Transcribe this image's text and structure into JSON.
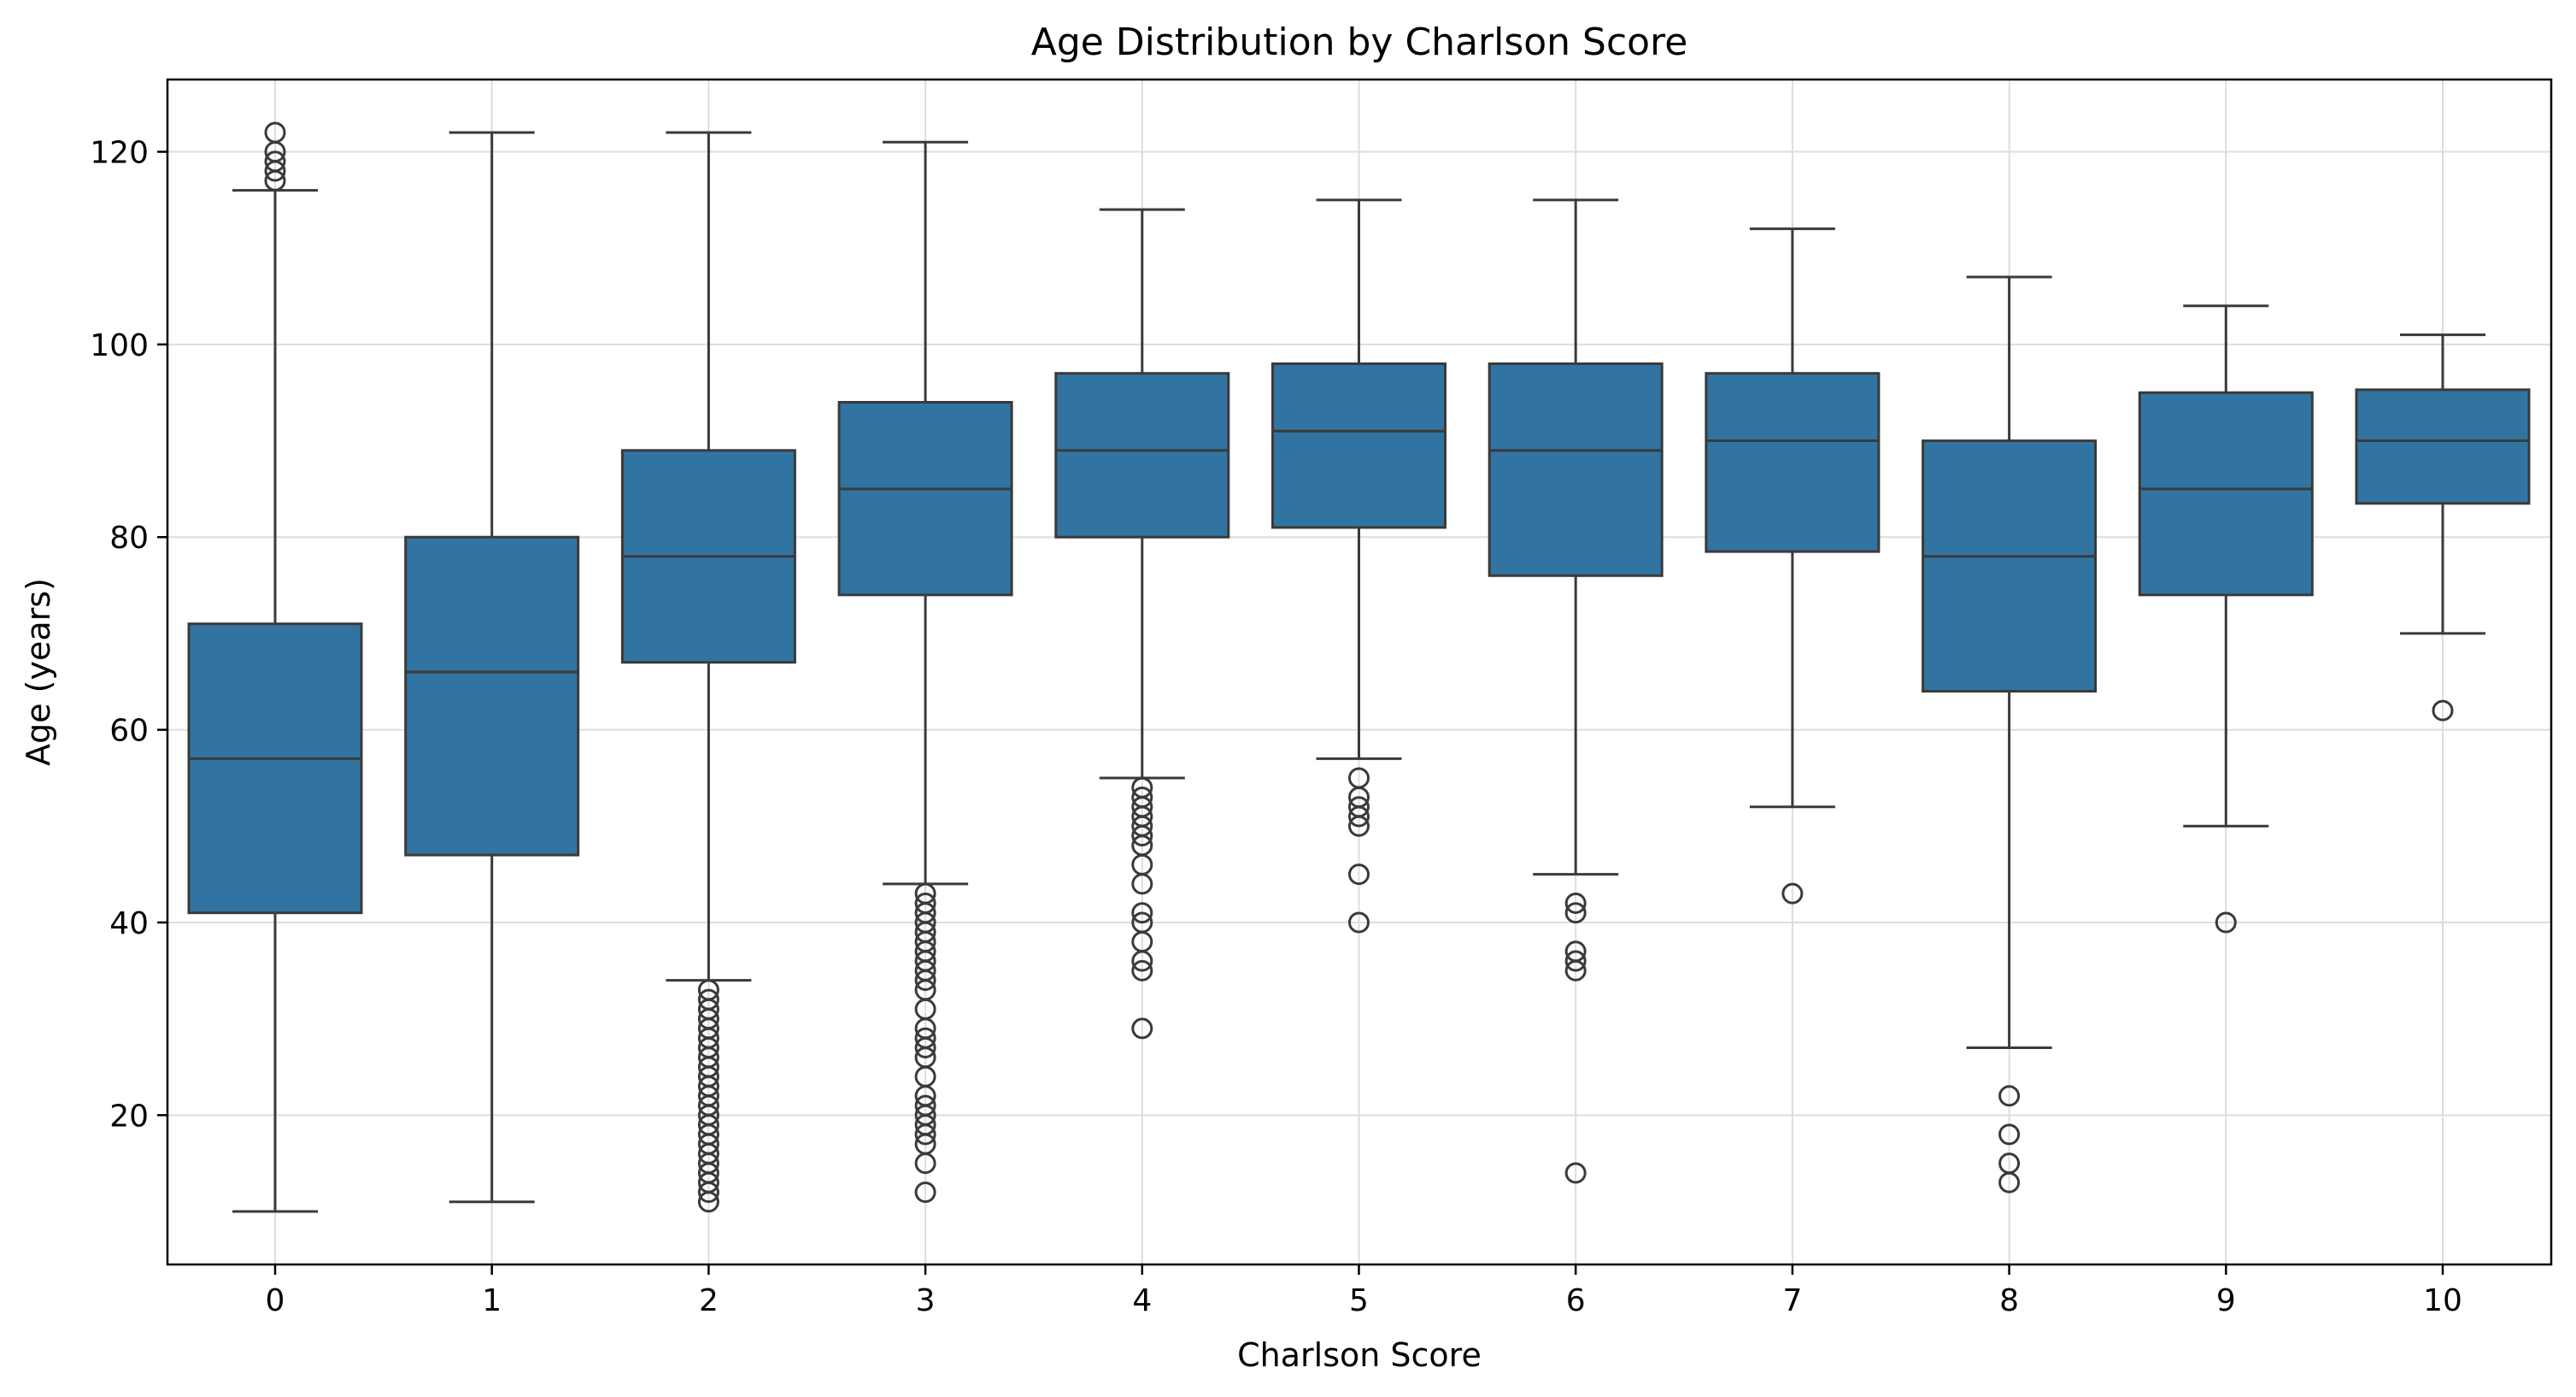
{
  "chart_data": {
    "type": "box",
    "title": "Age Distribution by Charlson Score",
    "xlabel": "Charlson Score",
    "ylabel": "Age (years)",
    "ylim": [
      4.5,
      127.5
    ],
    "yticks": [
      20,
      40,
      60,
      80,
      100,
      120
    ],
    "grid": true,
    "box_color": "#3274a1",
    "line_color": "#3a3a3a",
    "categories": [
      "0",
      "1",
      "2",
      "3",
      "4",
      "5",
      "6",
      "7",
      "8",
      "9",
      "10"
    ],
    "boxes": [
      {
        "category": "0",
        "whisker_low": 10,
        "q1": 41,
        "median": 57,
        "q3": 71,
        "whisker_high": 116,
        "outliers": [
          117,
          118,
          119,
          120,
          122
        ]
      },
      {
        "category": "1",
        "whisker_low": 11,
        "q1": 47,
        "median": 66,
        "q3": 80,
        "whisker_high": 122,
        "outliers": []
      },
      {
        "category": "2",
        "whisker_low": 34,
        "q1": 67,
        "median": 78,
        "q3": 89,
        "whisker_high": 122,
        "outliers": [
          11,
          12,
          13,
          14,
          15,
          16,
          17,
          18,
          19,
          20,
          21,
          22,
          23,
          24,
          25,
          26,
          27,
          28,
          29,
          30,
          31,
          32,
          33
        ]
      },
      {
        "category": "3",
        "whisker_low": 44,
        "q1": 74,
        "median": 85,
        "q3": 94,
        "whisker_high": 121,
        "outliers": [
          12,
          15,
          17,
          18,
          19,
          20,
          21,
          22,
          24,
          26,
          27,
          28,
          29,
          31,
          33,
          34,
          35,
          36,
          37,
          38,
          39,
          40,
          41,
          42,
          43
        ]
      },
      {
        "category": "4",
        "whisker_low": 55,
        "q1": 80,
        "median": 89,
        "q3": 97,
        "whisker_high": 114,
        "outliers": [
          29,
          35,
          36,
          38,
          40,
          41,
          44,
          46,
          48,
          49,
          50,
          51,
          52,
          53,
          54
        ]
      },
      {
        "category": "5",
        "whisker_low": 57,
        "q1": 81,
        "median": 91,
        "q3": 98,
        "whisker_high": 115,
        "outliers": [
          40,
          45,
          50,
          51,
          52,
          53,
          55
        ]
      },
      {
        "category": "6",
        "whisker_low": 45,
        "q1": 76,
        "median": 89,
        "q3": 98,
        "whisker_high": 115,
        "outliers": [
          14,
          35,
          36,
          37,
          41,
          42
        ]
      },
      {
        "category": "7",
        "whisker_low": 52,
        "q1": 78.5,
        "median": 90,
        "q3": 97,
        "whisker_high": 112,
        "outliers": [
          43
        ]
      },
      {
        "category": "8",
        "whisker_low": 27,
        "q1": 64,
        "median": 78,
        "q3": 90,
        "whisker_high": 107,
        "outliers": [
          13,
          15,
          18,
          22
        ]
      },
      {
        "category": "9",
        "whisker_low": 50,
        "q1": 74,
        "median": 85,
        "q3": 95,
        "whisker_high": 104,
        "outliers": [
          40
        ]
      },
      {
        "category": "10",
        "whisker_low": 70,
        "q1": 83.5,
        "median": 90,
        "q3": 95.3,
        "whisker_high": 101,
        "outliers": [
          62
        ]
      }
    ]
  }
}
